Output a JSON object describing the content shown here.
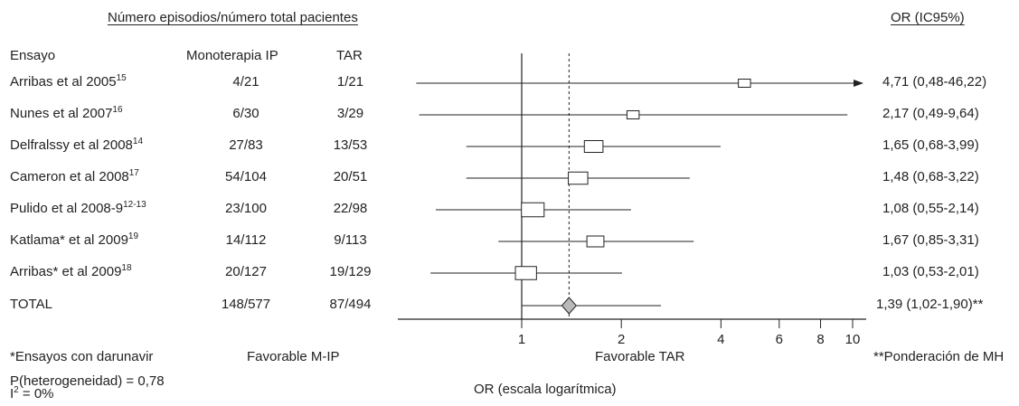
{
  "headers": {
    "group_header": "Número episodios/número total pacientes",
    "or_header": "OR (IC95%)",
    "col_trial": "Ensayo",
    "col_mono": "Monoterapia IP",
    "col_tar": "TAR"
  },
  "chart_data": {
    "type": "forest",
    "x_scale": "log",
    "xlim": [
      1,
      10
    ],
    "xticks": [
      "1",
      "2",
      "4",
      "6",
      "8",
      "10"
    ],
    "xlabel": "OR (escala logarítmica)",
    "reference_line": 1,
    "pooled_dashed_line": 1.39,
    "left_label": "Favorable M-IP",
    "right_label": "Favorable TAR",
    "rows": [
      {
        "trial": "Arribas et al 2005",
        "ref": "15",
        "mono": "4/21",
        "tar": "1/21",
        "or": 4.71,
        "lo": 0.48,
        "hi": 46.22,
        "ci_text": "4,71 (0,48-46,22)",
        "weight": 0.3
      },
      {
        "trial": "Nunes et al 2007",
        "ref": "16",
        "mono": "6/30",
        "tar": "3/29",
        "or": 2.17,
        "lo": 0.49,
        "hi": 9.64,
        "ci_text": "2,17 (0,49-9,64)",
        "weight": 0.3
      },
      {
        "trial": "Delfralssy et al 2008",
        "ref": "14",
        "mono": "27/83",
        "tar": "13/53",
        "or": 1.65,
        "lo": 0.68,
        "hi": 3.99,
        "ci_text": "1,65 (0,68-3,99)",
        "weight": 0.7
      },
      {
        "trial": "Cameron et al 2008",
        "ref": "17",
        "mono": "54/104",
        "tar": "20/51",
        "or": 1.48,
        "lo": 0.68,
        "hi": 3.22,
        "ci_text": "1,48 (0,68-3,22)",
        "weight": 0.75
      },
      {
        "trial": "Pulido et al 2008-9",
        "ref": "12-13",
        "mono": "23/100",
        "tar": "22/98",
        "or": 1.08,
        "lo": 0.55,
        "hi": 2.14,
        "ci_text": "1,08 (0,55-2,14)",
        "weight": 0.95
      },
      {
        "trial": "Katlama* et al 2009",
        "ref": "19",
        "mono": "14/112",
        "tar": "9/113",
        "or": 1.67,
        "lo": 0.85,
        "hi": 3.31,
        "ci_text": "1,67 (0,85-3,31)",
        "weight": 0.6
      },
      {
        "trial": "Arribas* et al 2009",
        "ref": "18",
        "mono": "20/127",
        "tar": "19/129",
        "or": 1.03,
        "lo": 0.53,
        "hi": 2.01,
        "ci_text": "1,03 (0,53-2,01)",
        "weight": 0.85
      }
    ],
    "total": {
      "trial": "TOTAL",
      "mono": "148/577",
      "tar": "87/494",
      "or": 1.39,
      "lo": 1.02,
      "hi": 1.9,
      "ci_text": "1,39 (1,02-1,90)**"
    }
  },
  "footnotes": {
    "darunavir": "*Ensayos con darunavir",
    "heterogeneity": "P(heterogeneidad) = 0,78",
    "i2_letter": "I",
    "i2_sup": "2",
    "i2_rest": " = 0%",
    "mh": "**Ponderación de MH"
  },
  "colors": {
    "ink": "#222222",
    "diamond_fill": "#b9b9b9"
  }
}
